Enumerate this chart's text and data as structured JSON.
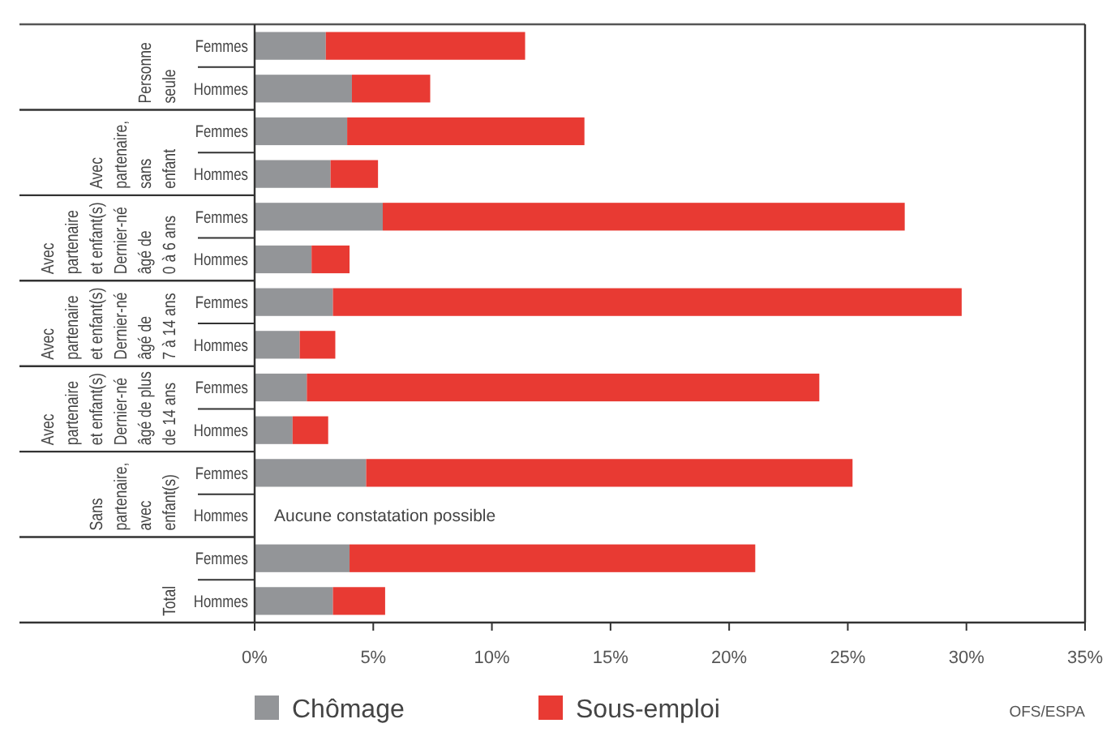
{
  "chart_data": {
    "type": "bar",
    "orientation": "horizontal",
    "stacked": true,
    "categories": [
      "Femmes",
      "Hommes",
      "Femmes",
      "Hommes",
      "Femmes",
      "Hommes",
      "Femmes",
      "Hommes",
      "Femmes",
      "Hommes",
      "Femmes",
      "Hommes",
      "Femmes",
      "Hommes"
    ],
    "series": [
      {
        "name": "Chômage",
        "color": "#939598",
        "values": [
          3.0,
          4.1,
          3.9,
          3.2,
          5.4,
          2.4,
          3.3,
          1.9,
          2.2,
          1.6,
          4.7,
          null,
          4.0,
          3.3
        ]
      },
      {
        "name": "Sous-emploi",
        "color": "#e83a33",
        "values": [
          8.4,
          3.3,
          10.0,
          2.0,
          22.0,
          1.6,
          26.5,
          1.5,
          21.6,
          1.5,
          20.5,
          null,
          17.1,
          2.2
        ]
      }
    ],
    "xlim": [
      0,
      35
    ],
    "xticks": [
      {
        "value": 0,
        "label": "0%"
      },
      {
        "value": 5,
        "label": "5%"
      },
      {
        "value": 10,
        "label": "10%"
      },
      {
        "value": 15,
        "label": "15%"
      },
      {
        "value": 20,
        "label": "20%"
      },
      {
        "value": 25,
        "label": "25%"
      },
      {
        "value": 30,
        "label": "30%"
      },
      {
        "value": 35,
        "label": "35%"
      }
    ],
    "legend": "bottom",
    "grid": false,
    "annotations": [
      "Personne\nseule",
      "Avec\npartenaire,\nsans\nenfant",
      "Avec\npartenaire\net enfant(s)\nDernier-né\nâgé de\n0 à 6 ans",
      "Avec\npartenaire\net enfant(s)\nDernier-né\nâgé de\n7 à 14 ans",
      "Avec\npartenaire\net enfant(s)\nDernier-né\nâgé de plus\nde 14 ans",
      "Sans\npartenaire,\navec\nenfant(s)",
      "Total",
      "Aucune constatation possible",
      "OFS/ESPA"
    ]
  }
}
